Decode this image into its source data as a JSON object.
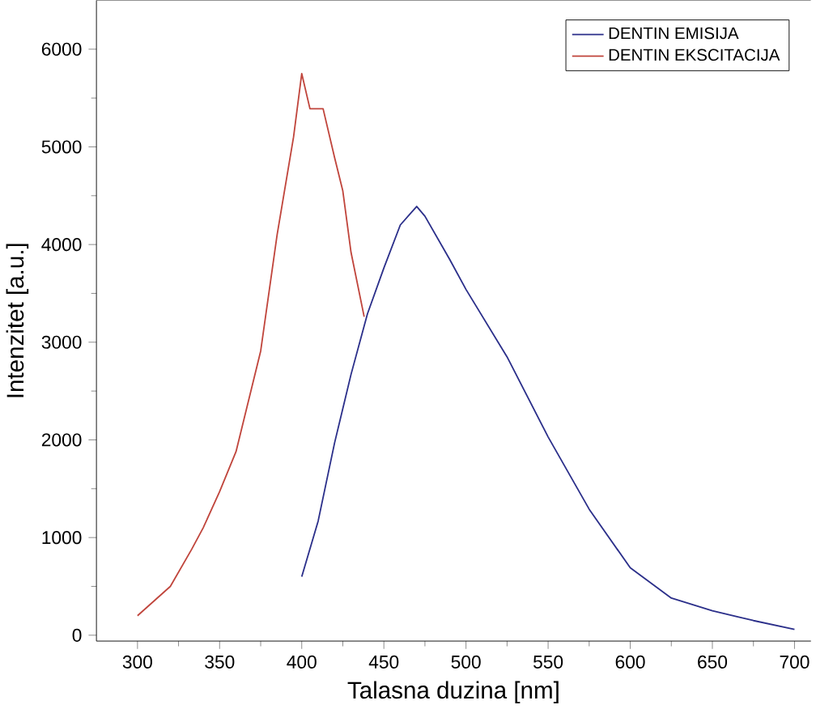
{
  "chart_data": {
    "type": "line",
    "xlabel": "Talasna duzina [nm]",
    "ylabel": "Intenzitet [a.u.]",
    "xlim": [
      275,
      710
    ],
    "ylim": [
      -60,
      6500
    ],
    "xticks": [
      300,
      350,
      400,
      450,
      500,
      550,
      600,
      650,
      700
    ],
    "yticks": [
      0,
      1000,
      2000,
      3000,
      4000,
      5000,
      6000
    ],
    "legend": "top right",
    "grid": false,
    "marker": "none",
    "line_style": "solid",
    "series": [
      {
        "name": "DENTIN EMISIJA",
        "color": "#2b2f8a",
        "x": [
          400,
          410,
          420,
          430,
          440,
          450,
          460,
          470,
          475,
          490,
          500,
          525,
          550,
          575,
          600,
          625,
          650,
          675,
          700
        ],
        "values": [
          600,
          1170,
          1970,
          2670,
          3290,
          3760,
          4200,
          4390,
          4290,
          3850,
          3540,
          2850,
          2030,
          1290,
          690,
          380,
          250,
          150,
          60
        ]
      },
      {
        "name": "DENTIN EKSCITACIJA",
        "color": "#c0453c",
        "x": [
          300,
          320,
          333,
          340,
          350,
          360,
          375,
          385,
          395,
          400,
          405,
          413,
          420,
          425,
          430,
          438
        ],
        "values": [
          200,
          500,
          880,
          1100,
          1470,
          1880,
          2910,
          4100,
          5100,
          5750,
          5390,
          5390,
          4890,
          4550,
          3920,
          3260
        ]
      }
    ]
  }
}
